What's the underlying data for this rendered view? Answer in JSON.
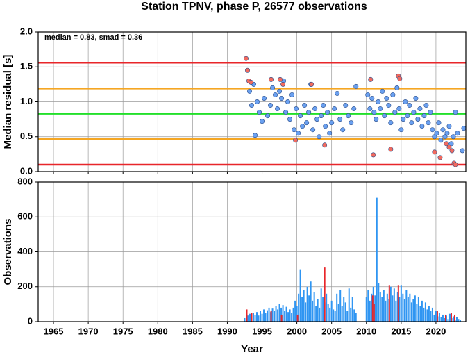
{
  "chart_data": [
    {
      "type": "scatter",
      "title": "Station TPNV, phase P, 26577 observations",
      "ylabel": "Median residual [s]",
      "annotation": "median = 0.83, smad = 0.36",
      "xlim": [
        1962.8,
        2024.3
      ],
      "xticks": [
        1965,
        1970,
        1975,
        1980,
        1985,
        1990,
        1995,
        2000,
        2005,
        2010,
        2015,
        2020
      ],
      "ylim": [
        0,
        2
      ],
      "yticks": [
        {
          "value": 0,
          "label": "0.0"
        },
        0.5,
        {
          "value": 1,
          "label": "1.0"
        },
        1.5,
        {
          "value": 2,
          "label": "2.0"
        }
      ],
      "grid": true,
      "hlines": [
        {
          "value": 1.56,
          "color": "#e8262a"
        },
        {
          "value": 1.19,
          "color": "#f5a623"
        },
        {
          "value": 0.83,
          "color": "#22e02a"
        },
        {
          "value": 0.47,
          "color": "#f5a623"
        },
        {
          "value": 0.1,
          "color": "#e8262a"
        }
      ],
      "series": [
        {
          "color": "#6aa0f0",
          "x": [
            1993.2,
            1993.5,
            1993.8,
            1994.0,
            1994.3,
            1994.6,
            1995.0,
            1995.3,
            1995.8,
            1996.2,
            1996.5,
            1996.9,
            1997.2,
            1997.5,
            1997.8,
            1998.1,
            1998.4,
            1998.7,
            1999.0,
            1999.3,
            1999.6,
            1999.9,
            2000.2,
            2000.5,
            2000.8,
            2001.1,
            2001.4,
            2001.7,
            2002.0,
            2002.3,
            2002.6,
            2002.9,
            2003.2,
            2003.5,
            2003.8,
            2004.1,
            2004.4,
            2004.7,
            2005.0,
            2005.4,
            2005.8,
            2006.2,
            2006.6,
            2007.0,
            2007.4,
            2007.8,
            2008.2,
            2008.5,
            2010.2,
            2010.5,
            2010.8,
            2011.1,
            2011.4,
            2011.7,
            2012.0,
            2012.3,
            2012.6,
            2012.9,
            2013.2,
            2013.5,
            2013.8,
            2014.1,
            2014.4,
            2014.7,
            2015.0,
            2015.3,
            2015.6,
            2015.9,
            2016.2,
            2016.5,
            2016.8,
            2017.1,
            2017.4,
            2017.7,
            2018.0,
            2018.3,
            2018.6,
            2018.9,
            2019.2,
            2019.5,
            2019.8,
            2020.1,
            2020.4,
            2020.7,
            2021.0,
            2021.3,
            2021.6,
            2021.9,
            2022.2,
            2022.5,
            2022.8,
            2023.1,
            2023.8,
            2024.0
          ],
          "values": [
            1.15,
            0.95,
            1.25,
            0.52,
            1.0,
            0.85,
            0.72,
            1.05,
            0.8,
            0.95,
            1.2,
            1.1,
            0.9,
            1.15,
            1.05,
            1.3,
            0.85,
            1.0,
            0.75,
            1.1,
            0.6,
            0.9,
            0.55,
            0.8,
            0.65,
            0.95,
            0.7,
            0.85,
            1.25,
            0.6,
            0.9,
            0.75,
            0.5,
            0.8,
            0.95,
            0.65,
            0.85,
            0.55,
            0.7,
            0.9,
            1.12,
            0.75,
            0.6,
            0.95,
            0.8,
            0.7,
            0.9,
            1.22,
            1.1,
            0.9,
            1.05,
            0.85,
            0.75,
            1.0,
            0.9,
            1.15,
            0.8,
            1.05,
            0.95,
            0.7,
            1.1,
            0.85,
            1.2,
            0.9,
            0.6,
            0.75,
            1.0,
            0.8,
            0.95,
            0.7,
            0.85,
            1.05,
            0.75,
            0.9,
            0.65,
            0.8,
            0.95,
            0.7,
            0.85,
            0.6,
            0.5,
            0.55,
            0.7,
            0.45,
            0.6,
            0.5,
            0.55,
            0.65,
            0.4,
            0.5,
            0.85,
            0.55,
            0.3,
            0.62
          ]
        },
        {
          "color": "#f26a5e",
          "x": [
            1992.7,
            1992.9,
            1993.1,
            1993.4,
            1996.3,
            1997.6,
            1998.0,
            1999.8,
            2002.1,
            2004.0,
            2010.6,
            2011.0,
            2013.5,
            2014.6,
            2014.8,
            2019.8,
            2020.6,
            2021.5,
            2021.9,
            2022.3,
            2022.6,
            2022.8
          ],
          "values": [
            1.62,
            1.45,
            1.3,
            1.28,
            1.32,
            1.32,
            1.25,
            0.45,
            1.25,
            0.38,
            1.32,
            0.24,
            0.32,
            1.37,
            1.33,
            0.28,
            0.2,
            0.4,
            0.35,
            0.3,
            0.12,
            0.1
          ]
        }
      ]
    },
    {
      "type": "bar",
      "ylabel": "Observations",
      "xlabel": "Year",
      "xlim": [
        1962.8,
        2024.3
      ],
      "xticks": [
        1965,
        1970,
        1975,
        1980,
        1985,
        1990,
        1995,
        2000,
        2005,
        2010,
        2015,
        2020
      ],
      "ylim": [
        0,
        800
      ],
      "yticks": [
        0,
        200,
        400,
        600,
        800
      ],
      "grid": true,
      "series": [
        {
          "color": "#2f95f2",
          "x": [
            1992.5,
            1992.75,
            1993,
            1993.25,
            1993.5,
            1993.75,
            1994,
            1994.25,
            1994.5,
            1994.75,
            1995,
            1995.25,
            1995.5,
            1995.75,
            1996,
            1996.25,
            1996.5,
            1996.75,
            1997,
            1997.25,
            1997.5,
            1997.75,
            1998,
            1998.25,
            1998.5,
            1998.75,
            1999,
            1999.25,
            1999.5,
            1999.75,
            2000,
            2000.25,
            2000.5,
            2000.75,
            2001,
            2001.25,
            2001.5,
            2001.75,
            2002,
            2002.25,
            2002.5,
            2002.75,
            2003,
            2003.25,
            2003.5,
            2003.75,
            2004,
            2004.25,
            2004.5,
            2004.75,
            2005,
            2005.25,
            2005.5,
            2005.75,
            2006,
            2006.25,
            2006.5,
            2006.75,
            2007,
            2007.25,
            2007.5,
            2007.75,
            2008,
            2008.25,
            2008.5,
            2010,
            2010.25,
            2010.5,
            2010.75,
            2011,
            2011.25,
            2011.5,
            2011.75,
            2012,
            2012.25,
            2012.5,
            2012.75,
            2013,
            2013.25,
            2013.5,
            2013.75,
            2014,
            2014.25,
            2014.5,
            2014.75,
            2015,
            2015.25,
            2015.5,
            2015.75,
            2016,
            2016.25,
            2016.5,
            2016.75,
            2017,
            2017.25,
            2017.5,
            2017.75,
            2018,
            2018.25,
            2018.5,
            2018.75,
            2019,
            2019.25,
            2019.5,
            2019.75,
            2020,
            2020.25,
            2020.5,
            2020.75,
            2021,
            2021.25,
            2021.5,
            2021.75,
            2022,
            2022.25,
            2022.5,
            2022.75,
            2023,
            2023.25,
            2023.5
          ],
          "values": [
            20,
            40,
            35,
            45,
            30,
            50,
            40,
            55,
            35,
            60,
            45,
            70,
            50,
            65,
            80,
            55,
            75,
            60,
            90,
            70,
            100,
            80,
            95,
            60,
            85,
            55,
            70,
            50,
            80,
            120,
            90,
            160,
            300,
            140,
            180,
            110,
            200,
            150,
            230,
            120,
            170,
            90,
            130,
            80,
            190,
            140,
            110,
            160,
            100,
            80,
            120,
            70,
            60,
            160,
            100,
            180,
            90,
            140,
            110,
            60,
            190,
            80,
            140,
            70,
            50,
            140,
            180,
            120,
            160,
            200,
            150,
            710,
            220,
            170,
            140,
            180,
            120,
            160,
            130,
            200,
            150,
            190,
            120,
            170,
            140,
            210,
            160,
            130,
            180,
            140,
            160,
            110,
            130,
            150,
            100,
            140,
            90,
            120,
            80,
            110,
            70,
            90,
            60,
            80,
            40,
            60,
            30,
            50,
            25,
            40,
            20,
            35,
            15,
            45,
            20,
            30,
            10,
            25,
            15,
            10
          ]
        },
        {
          "color": "#e8262a",
          "x": [
            1992.8,
            1993.5,
            1996.3,
            1997.8,
            2000.1,
            2004.0,
            2010.9,
            2011.1,
            2013.3,
            2014.6,
            2020.2,
            2021.4,
            2022.2,
            2022.7
          ],
          "values": [
            70,
            50,
            60,
            40,
            40,
            310,
            150,
            100,
            210,
            210,
            60,
            40,
            50,
            40
          ]
        }
      ]
    }
  ]
}
